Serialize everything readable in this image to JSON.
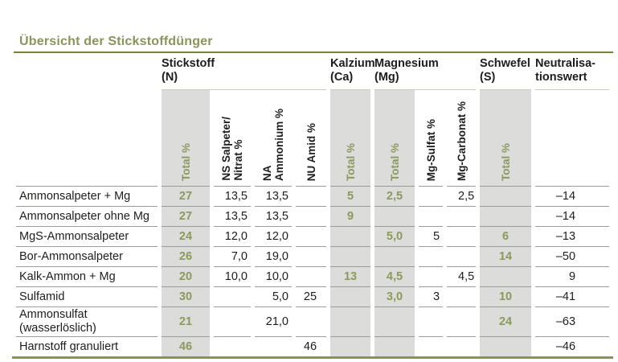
{
  "title": "Übersicht der Stickstoffdünger",
  "colors": {
    "green_text": "#87965a",
    "green_values": "#8a9a5c",
    "olive_rule": "#76833f",
    "olive_bottom_rule": "#88964c",
    "pale_group_rule": "#c9ccb2",
    "shaded_column": "#dcdcda",
    "row_separator": "#9b9b99",
    "text": "#1d1d1b"
  },
  "t": {
    "groups": [
      {
        "l1": "Stickstoff",
        "l2": "(N)"
      },
      {
        "l1": "Kalzium",
        "l2": "(Ca)"
      },
      {
        "l1": "Magnesium",
        "l2": "(Mg)"
      },
      {
        "l1": "Schwefel",
        "l2": "(S)"
      },
      {
        "l1": "Neutralisa-",
        "l2": "tionswert"
      }
    ],
    "cols": [
      {
        "id": "n_total",
        "l1": "Total %",
        "l2": "",
        "shaded": true,
        "green": true
      },
      {
        "id": "ns_nitrat",
        "l1": "NS Salpeter/",
        "l2": "Nitrat %",
        "shaded": false,
        "green": false
      },
      {
        "id": "na_ammonium",
        "l1": "NA",
        "l2": "Ammonium %",
        "shaded": false,
        "green": false
      },
      {
        "id": "nu_amid",
        "l1": "NU Amid %",
        "l2": "",
        "shaded": false,
        "green": false
      },
      {
        "id": "ca_total",
        "l1": "Total %",
        "l2": "",
        "shaded": true,
        "green": true
      },
      {
        "id": "mg_total",
        "l1": "Total %",
        "l2": "",
        "shaded": true,
        "green": true
      },
      {
        "id": "mg_sulfat",
        "l1": "Mg-Sulfat %",
        "l2": "",
        "shaded": false,
        "green": false
      },
      {
        "id": "mg_carbonat",
        "l1": "Mg-Carbonat %",
        "l2": "",
        "shaded": false,
        "green": false
      },
      {
        "id": "s_total",
        "l1": "Total %",
        "l2": "",
        "shaded": true,
        "green": true
      },
      {
        "id": "neutral",
        "l1": "",
        "l2": "",
        "shaded": false,
        "green": false
      }
    ],
    "rows": [
      {
        "label": [
          "Ammonsalpeter + Mg"
        ],
        "v": [
          "27",
          "13,5",
          "13,5",
          "",
          "5",
          "2,5",
          "",
          "2,5",
          "",
          "–14"
        ]
      },
      {
        "label": [
          "Ammonsalpeter ohne Mg"
        ],
        "v": [
          "27",
          "13,5",
          "13,5",
          "",
          "9",
          "",
          "",
          "",
          "",
          "–14"
        ]
      },
      {
        "label": [
          "MgS-Ammonsalpeter"
        ],
        "v": [
          "24",
          "12,0",
          "12,0",
          "",
          "",
          "5,0",
          "5",
          "",
          "6",
          "–13"
        ]
      },
      {
        "label": [
          "Bor-Ammonsalpeter"
        ],
        "v": [
          "26",
          "7,0",
          "19,0",
          "",
          "",
          "",
          "",
          "",
          "14",
          "–50"
        ]
      },
      {
        "label": [
          "Kalk-Ammon + Mg"
        ],
        "v": [
          "20",
          "10,0",
          "10,0",
          "",
          "13",
          "4,5",
          "",
          "4,5",
          "",
          "9"
        ]
      },
      {
        "label": [
          "Sulfamid"
        ],
        "v": [
          "30",
          "",
          "5,0",
          "25",
          "",
          "3,0",
          "3",
          "",
          "10",
          "–41"
        ]
      },
      {
        "label": [
          "Ammonsulfat",
          "(wasserlöslich)"
        ],
        "v": [
          "21",
          "",
          "21,0",
          "",
          "",
          "",
          "",
          "",
          "24",
          "–63"
        ]
      },
      {
        "label": [
          "Harnstoff granuliert"
        ],
        "v": [
          "46",
          "",
          "",
          "46",
          "",
          "",
          "",
          "",
          "",
          "–46"
        ]
      }
    ]
  }
}
